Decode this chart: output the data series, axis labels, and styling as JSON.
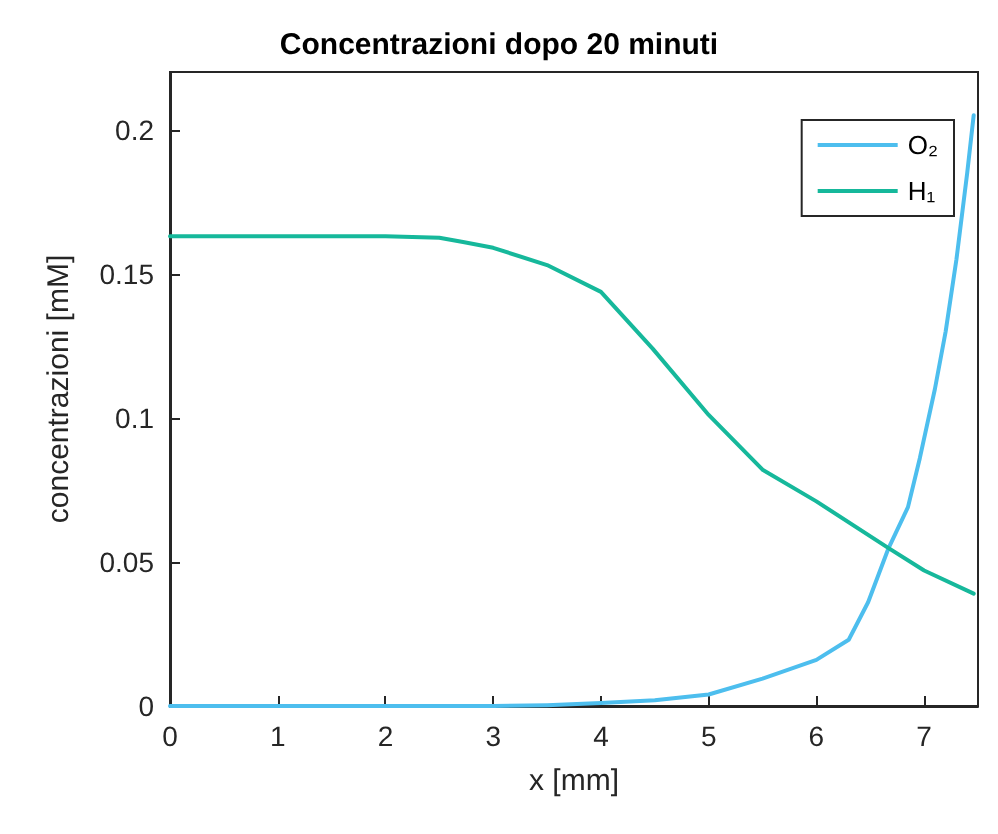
{
  "chart_data": {
    "type": "line",
    "title": "Concentrazioni dopo 20 minuti",
    "xlabel": "x [mm]",
    "ylabel": "concentrazioni [mM]",
    "xlim": [
      0,
      7.5
    ],
    "ylim": [
      0,
      0.22
    ],
    "xticks": [
      0,
      1,
      2,
      3,
      4,
      5,
      6,
      7
    ],
    "yticks": [
      0,
      0.05,
      0.1,
      0.15,
      0.2
    ],
    "grid": false,
    "legend": "top right",
    "marker": "none",
    "line_style": "solid",
    "series": [
      {
        "name": "O₂",
        "color": "#4dbeee",
        "x": [
          0,
          1,
          2,
          3,
          3.5,
          4,
          4.5,
          5,
          5.5,
          6,
          6.3,
          6.48,
          6.67,
          6.85,
          6.96,
          7.1,
          7.2,
          7.3,
          7.4,
          7.46
        ],
        "values": [
          0,
          0,
          0,
          0,
          0.0003,
          0.001,
          0.002,
          0.004,
          0.0095,
          0.016,
          0.023,
          0.036,
          0.0548,
          0.069,
          0.086,
          0.11,
          0.13,
          0.155,
          0.185,
          0.205
        ]
      },
      {
        "name": "H₁",
        "color": "#16b89b",
        "x": [
          0,
          1,
          2,
          2.5,
          2.72,
          3,
          3.5,
          4,
          4.48,
          5,
          5.5,
          6,
          6.67,
          7,
          7.46
        ],
        "values": [
          0.163,
          0.163,
          0.163,
          0.1625,
          0.161,
          0.159,
          0.153,
          0.1437,
          0.124,
          0.101,
          0.082,
          0.071,
          0.0548,
          0.047,
          0.039
        ]
      }
    ]
  }
}
